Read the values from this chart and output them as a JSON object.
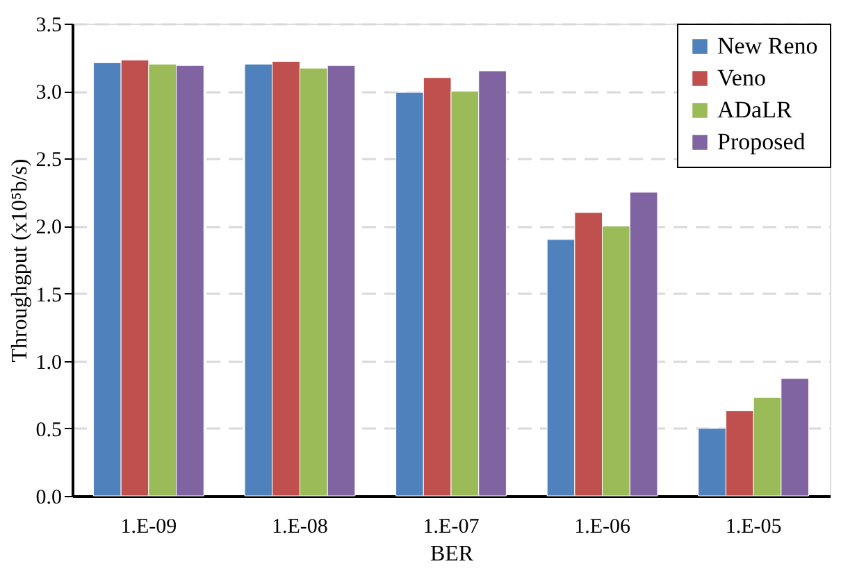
{
  "chart_data": {
    "type": "bar",
    "xlabel": "BER",
    "ylabel": "Throughgput (x10⁵b/s)",
    "categories": [
      "1.E-09",
      "1.E-08",
      "1.E-07",
      "1.E-06",
      "1.E-05"
    ],
    "series": [
      {
        "name": "New Reno",
        "color": "#4f81bd",
        "values": [
          3.21,
          3.2,
          2.99,
          1.9,
          0.5
        ]
      },
      {
        "name": "Veno",
        "color": "#c0504d",
        "values": [
          3.23,
          3.22,
          3.1,
          2.1,
          0.63
        ]
      },
      {
        "name": "ADaLR",
        "color": "#9bbb59",
        "values": [
          3.2,
          3.17,
          3.0,
          2.0,
          0.73
        ]
      },
      {
        "name": "Proposed",
        "color": "#8064a2",
        "values": [
          3.19,
          3.19,
          3.15,
          2.25,
          0.87
        ]
      }
    ],
    "ylim": [
      0,
      3.5
    ],
    "yticks": [
      {
        "value": 0,
        "label": "0.0"
      },
      {
        "value": 0.5,
        "label": "0.5"
      },
      {
        "value": 1,
        "label": "1.0"
      },
      {
        "value": 1.5,
        "label": "1.5"
      },
      {
        "value": 2,
        "label": "2.0"
      },
      {
        "value": 2.5,
        "label": "2.5"
      },
      {
        "value": 3,
        "label": "3.0"
      },
      {
        "value": 3.5,
        "label": "3.5"
      }
    ],
    "grid": "y",
    "legend": "top right"
  }
}
